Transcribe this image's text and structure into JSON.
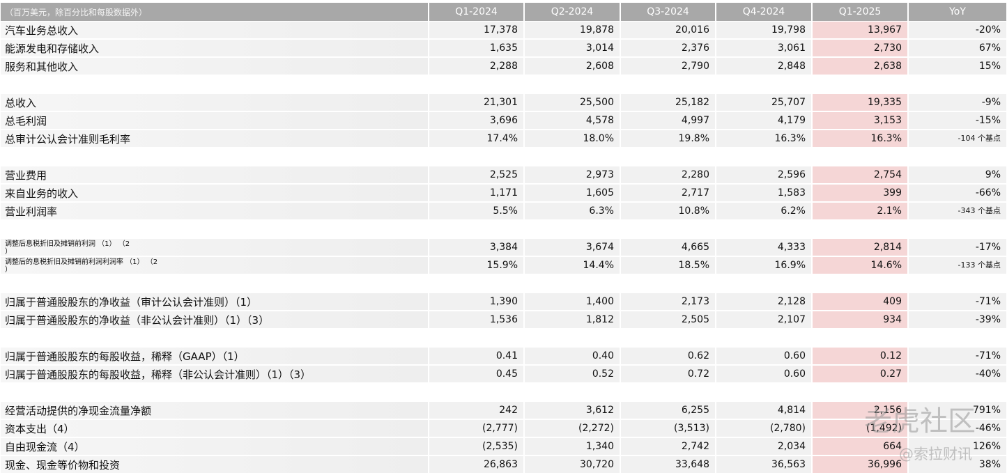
{
  "table": {
    "header": [
      "（百万美元，除百分比和每股数据外）",
      "Q1-2024",
      "Q2-2024",
      "Q3-2024",
      "Q4-2024",
      "Q1-2025",
      "YoY"
    ],
    "groups": [
      [
        [
          "汽车业务总收入",
          "17,378",
          "19,878",
          "20,016",
          "19,798",
          "13,967",
          "-20%"
        ],
        [
          "能源发电和存储收入",
          "1,635",
          "3,014",
          "2,376",
          "3,061",
          "2,730",
          "67%"
        ],
        [
          "服务和其他收入",
          "2,288",
          "2,608",
          "2,790",
          "2,848",
          "2,638",
          "15%"
        ]
      ],
      [
        [
          "总收入",
          "21,301",
          "25,500",
          "25,182",
          "25,707",
          "19,335",
          "-9%"
        ],
        [
          "总毛利润",
          "3,696",
          "4,578",
          "4,997",
          "4,179",
          "3,153",
          "-15%"
        ],
        [
          "总审计公认会计准则毛利率",
          "17.4%",
          "18.0%",
          "19.8%",
          "16.3%",
          "16.3%",
          "-104 个基点"
        ]
      ],
      [
        [
          "营业费用",
          "2,525",
          "2,973",
          "2,280",
          "2,596",
          "2,754",
          "9%"
        ],
        [
          "来自业务的收入",
          "1,171",
          "1,605",
          "2,717",
          "1,583",
          "399",
          "-66%"
        ],
        [
          "营业利润率",
          "5.5%",
          "6.3%",
          "10.8%",
          "6.2%",
          "2.1%",
          "-343 个基点"
        ]
      ],
      [
        [
          "调整后息税折旧及摊销前利润 （1） （2\n）",
          "3,384",
          "3,674",
          "4,665",
          "4,333",
          "2,814",
          "-17%"
        ],
        [
          "调整后的息税折旧及摊销前利润利润率 （1） （2\n）",
          "15.9%",
          "14.4%",
          "18.5%",
          "16.9%",
          "14.6%",
          "-133 个基点"
        ]
      ],
      [
        [
          "归属于普通股股东的净收益（审计公认会计准则）（1）",
          "1,390",
          "1,400",
          "2,173",
          "2,128",
          "409",
          "-71%"
        ],
        [
          "归属于普通股股东的净收益（非公认会计准则）（1）（3）",
          "1,536",
          "1,812",
          "2,505",
          "2,107",
          "934",
          "-39%"
        ]
      ],
      [
        [
          "归属于普通股股东的每股收益，稀释（GAAP）（1）",
          "0.41",
          "0.40",
          "0.62",
          "0.60",
          "0.12",
          "-71%"
        ],
        [
          "归属于普通股股东的每股收益，稀释（非公认会计准则）（1）（3）",
          "0.45",
          "0.52",
          "0.72",
          "0.60",
          "0.27",
          "-40%"
        ]
      ],
      [
        [
          "经营活动提供的净现金流量净额",
          "242",
          "3,612",
          "6,255",
          "4,814",
          "2,156",
          "791%"
        ],
        [
          "资本支出（4）",
          "(2,777)",
          "(2,272)",
          "(3,513)",
          "(2,780)",
          "(1,492)",
          "-46%"
        ],
        [
          "自由现金流（4）",
          "(2,535)",
          "1,340",
          "2,742",
          "2,034",
          "664",
          "126%"
        ],
        [
          "现金、现金等价物和投资",
          "26,863",
          "30,720",
          "33,648",
          "36,563",
          "36,996",
          "38%"
        ]
      ]
    ]
  },
  "watermarks": [
    "老虎社区",
    "@索拉财讯"
  ]
}
